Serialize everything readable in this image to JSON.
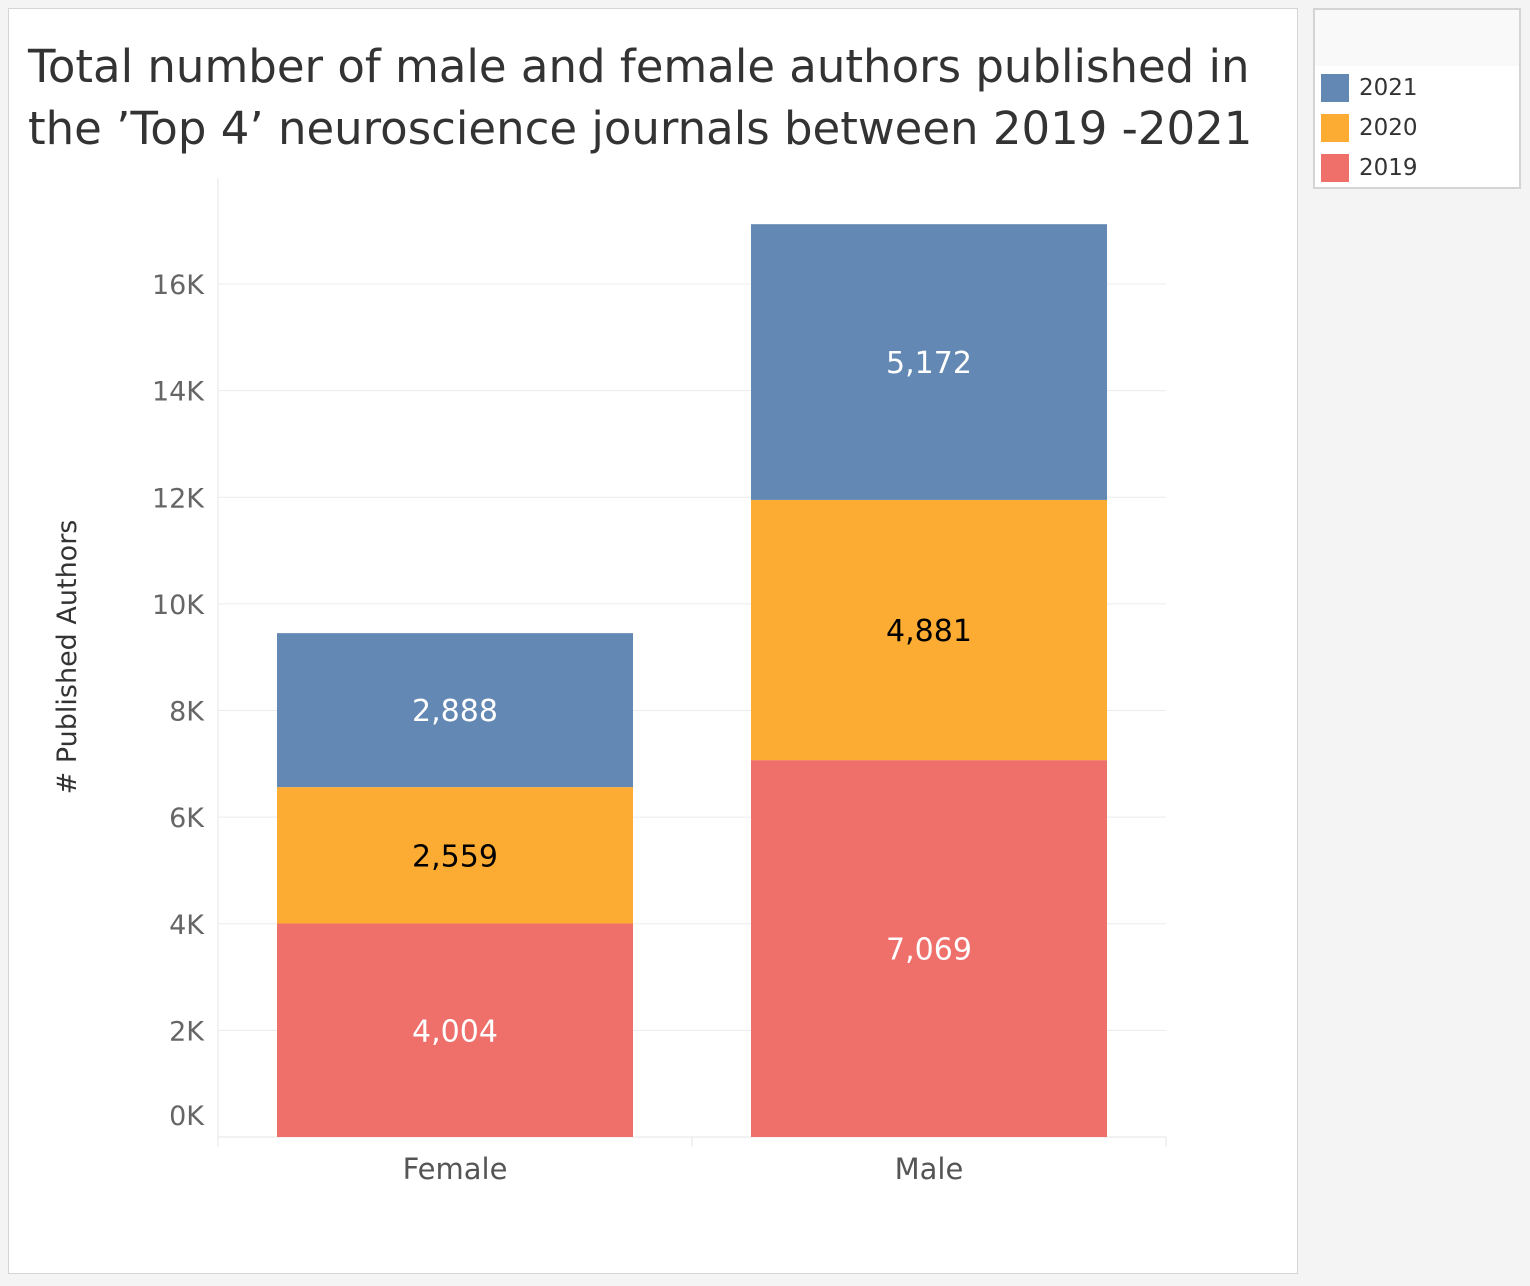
{
  "chart_data": {
    "type": "bar",
    "stacked": true,
    "title": "Total number of male and female authors published in the ’Top 4’ neuroscience journals between 2019 -2021",
    "xlabel": "",
    "ylabel": "# Published Authors",
    "ylim": [
      0,
      17500
    ],
    "grid": true,
    "legend_placement": "right",
    "categories": [
      "Female",
      "Male"
    ],
    "yticks": [
      0,
      2000,
      4000,
      6000,
      8000,
      10000,
      12000,
      14000,
      16000
    ],
    "ytick_labels": [
      "0K",
      "2K",
      "4K",
      "6K",
      "8K",
      "10K",
      "12K",
      "14K",
      "16K"
    ],
    "series": [
      {
        "name": "2019",
        "color": "#ef6f6a",
        "label_color": "#ffffff",
        "values": [
          4004,
          7069
        ],
        "labels": [
          "4,004",
          "7,069"
        ]
      },
      {
        "name": "2020",
        "color": "#fdac33",
        "label_color": "#000000",
        "values": [
          2559,
          4881
        ],
        "labels": [
          "2,559",
          "4,881"
        ]
      },
      {
        "name": "2021",
        "color": "#6388b3",
        "label_color": "#ffffff",
        "values": [
          2888,
          5172
        ],
        "labels": [
          "2,888",
          "5,172"
        ]
      }
    ],
    "legend_order": [
      2,
      1,
      0
    ]
  }
}
